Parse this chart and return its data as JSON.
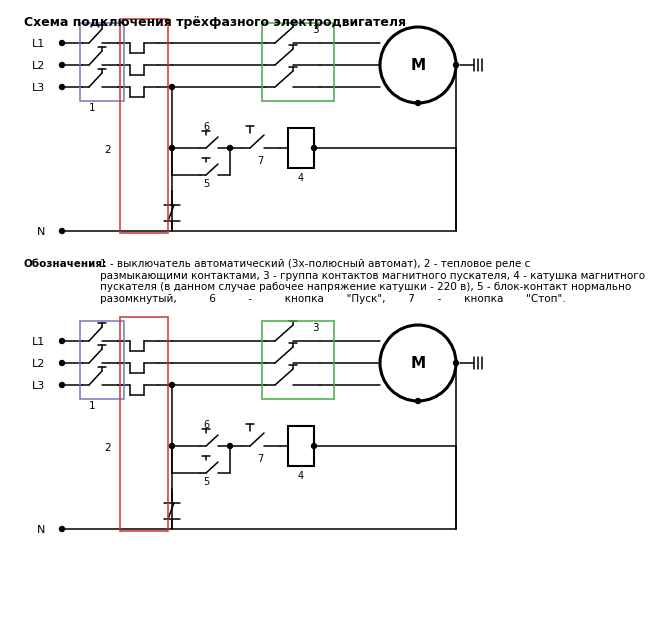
{
  "title": "Схема подключения трёхфазного электродвигателя",
  "bg_color": "#ffffff",
  "lc": "#000000",
  "box_blue": "#7777bb",
  "box_red": "#cc3333",
  "box_green": "#44aa44",
  "desc_bold": "Обозначения:",
  "desc_text": " 1 - выключатель автоматический (3х-полюсный автомат), 2 - тепловое реле с\nразмыкающими контактами, 3 - группа контактов магнитного пускателя, 4 - катушка магнитного\nпускателя (в данном случае рабочее напряжение катушки - 220 в), 5 - блок-контакт нормально\nразомкнутый,          6          -          кнопка       \"Пуск\",       7       -       кнопка       \"Стоп\".",
  "lw": 1.1
}
